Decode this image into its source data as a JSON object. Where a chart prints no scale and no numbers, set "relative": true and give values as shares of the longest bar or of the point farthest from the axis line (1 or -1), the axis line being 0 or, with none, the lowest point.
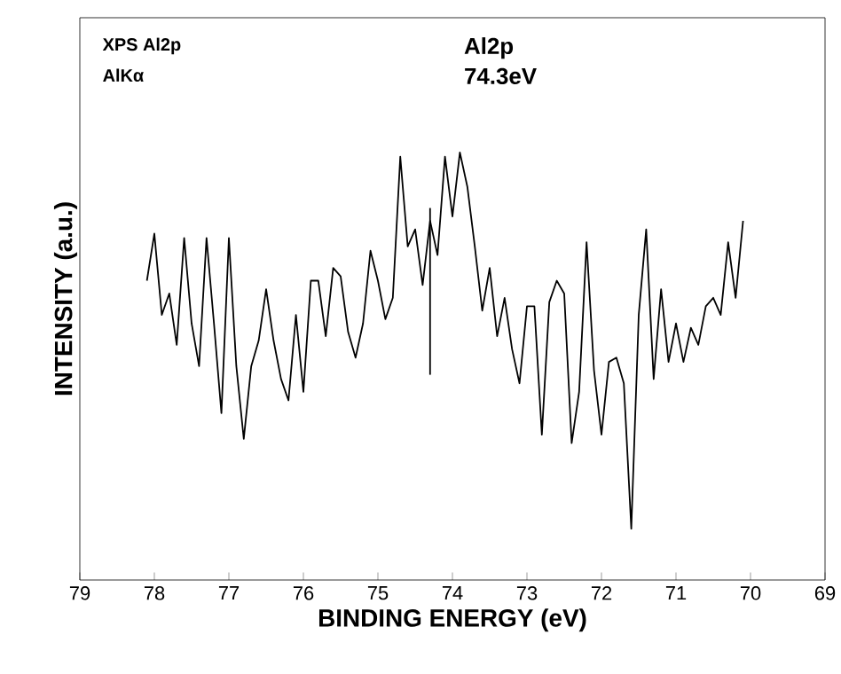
{
  "chart_data": {
    "type": "line",
    "xlabel": "BINDING ENERGY (eV)",
    "ylabel": "INTENSITY (a.u.)",
    "relative": true,
    "xlim": [
      79,
      69
    ],
    "xticks": [
      79,
      78,
      77,
      76,
      75,
      74,
      73,
      72,
      71,
      70,
      69
    ],
    "x": [
      78.1,
      78.0,
      77.9,
      77.8,
      77.7,
      77.6,
      77.5,
      77.4,
      77.3,
      77.2,
      77.1,
      77.0,
      76.9,
      76.8,
      76.7,
      76.6,
      76.5,
      76.4,
      76.3,
      76.2,
      76.1,
      76.0,
      75.9,
      75.8,
      75.7,
      75.6,
      75.5,
      75.4,
      75.3,
      75.2,
      75.1,
      75.0,
      74.9,
      74.8,
      74.7,
      74.6,
      74.5,
      74.4,
      74.3,
      74.2,
      74.1,
      74.0,
      73.9,
      73.8,
      73.7,
      73.6,
      73.5,
      73.4,
      73.3,
      73.2,
      73.1,
      73.0,
      72.9,
      72.8,
      72.7,
      72.6,
      72.5,
      72.4,
      72.3,
      72.2,
      72.1,
      72.0,
      71.9,
      71.8,
      71.7,
      71.6,
      71.5,
      71.4,
      71.3,
      71.2,
      71.1,
      71.0,
      70.9,
      70.8,
      70.7,
      70.6,
      70.5,
      70.4,
      70.3,
      70.2,
      70.1
    ],
    "values": [
      0.7,
      0.81,
      0.62,
      0.67,
      0.55,
      0.8,
      0.6,
      0.5,
      0.8,
      0.6,
      0.39,
      0.8,
      0.5,
      0.33,
      0.5,
      0.56,
      0.68,
      0.56,
      0.47,
      0.42,
      0.62,
      0.44,
      0.7,
      0.7,
      0.57,
      0.73,
      0.71,
      0.58,
      0.52,
      0.6,
      0.77,
      0.7,
      0.61,
      0.66,
      0.99,
      0.78,
      0.82,
      0.69,
      0.84,
      0.76,
      0.99,
      0.85,
      1.0,
      0.92,
      0.78,
      0.63,
      0.73,
      0.57,
      0.66,
      0.54,
      0.46,
      0.64,
      0.64,
      0.34,
      0.65,
      0.7,
      0.67,
      0.32,
      0.44,
      0.79,
      0.49,
      0.34,
      0.51,
      0.52,
      0.46,
      0.12,
      0.62,
      0.82,
      0.47,
      0.68,
      0.51,
      0.6,
      0.51,
      0.59,
      0.55,
      0.64,
      0.66,
      0.62,
      0.79,
      0.66,
      0.84
    ],
    "color": "#000000",
    "grid": false,
    "marker": "none",
    "line_style": "solid",
    "ref_lines": [
      {
        "axis": "x",
        "value": 74.3,
        "label": "Al2p 74.3eV",
        "color": "#000000"
      }
    ],
    "annotations": [
      "XPS Al2p",
      "AlKα"
    ]
  }
}
